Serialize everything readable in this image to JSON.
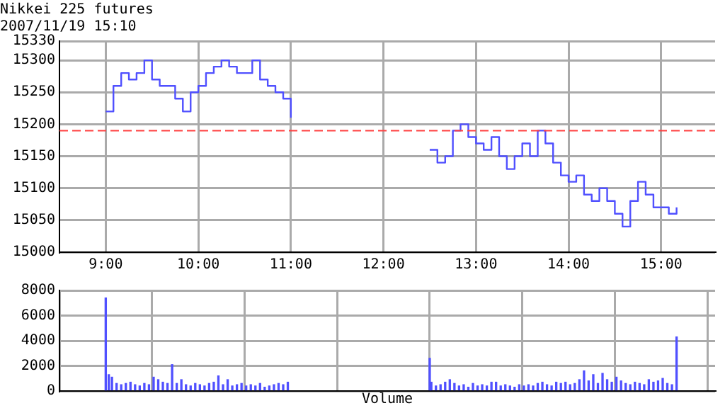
{
  "chart_data": [
    {
      "type": "step",
      "title": "Nikkei 225 futures",
      "subtitle": "2007/11/19 15:10",
      "x": [
        9,
        9.083,
        9.167,
        9.25,
        9.333,
        9.417,
        9.5,
        9.583,
        9.667,
        9.75,
        9.833,
        9.917,
        10,
        10.083,
        10.167,
        10.25,
        10.333,
        10.417,
        10.5,
        10.583,
        10.667,
        10.75,
        10.833,
        10.917,
        11,
        11.75,
        12.5,
        12.583,
        12.667,
        12.75,
        12.833,
        12.917,
        13,
        13.083,
        13.167,
        13.25,
        13.333,
        13.417,
        13.5,
        13.583,
        13.667,
        13.75,
        13.833,
        13.917,
        14,
        14.083,
        14.167,
        14.25,
        14.333,
        14.417,
        14.5,
        14.583,
        14.667,
        14.75,
        14.833,
        14.917,
        15,
        15.083,
        15.167
      ],
      "series": [
        {
          "color": "#5050ff",
          "values": [
            15220,
            15260,
            15280,
            15270,
            15280,
            15300,
            15270,
            15260,
            15260,
            15240,
            15220,
            15250,
            15260,
            15280,
            15290,
            15300,
            15290,
            15280,
            15280,
            15300,
            15270,
            15260,
            15250,
            15240,
            15210,
            null,
            15160,
            15140,
            15150,
            15190,
            15200,
            15180,
            15170,
            15160,
            15180,
            15150,
            15130,
            15150,
            15170,
            15150,
            15190,
            15170,
            15140,
            15120,
            15110,
            15120,
            15090,
            15080,
            15100,
            15080,
            15060,
            15040,
            15080,
            15110,
            15090,
            15070,
            15070,
            15060,
            15070
          ]
        }
      ],
      "xlim": [
        8.5,
        15.583
      ],
      "xticks": [
        {
          "value": 9,
          "label": "9:00"
        },
        {
          "value": 10,
          "label": "10:00"
        },
        {
          "value": 11,
          "label": "11:00"
        },
        {
          "value": 12,
          "label": "12:00"
        },
        {
          "value": 13,
          "label": "13:00"
        },
        {
          "value": 14,
          "label": "14:00"
        },
        {
          "value": 15,
          "label": "15:00"
        }
      ],
      "ylim": [
        15000,
        15330
      ],
      "yticks": [
        15000,
        15050,
        15100,
        15150,
        15200,
        15250,
        15300,
        15330
      ],
      "ref_lines": [
        {
          "axis": "y",
          "value": 15190,
          "color": "#ff4040",
          "line_style": "dashed"
        }
      ],
      "grid": true,
      "legend": false
    },
    {
      "type": "bar",
      "xlabel": "Volume",
      "x": [
        9,
        9.033,
        9.067,
        9.117,
        9.167,
        9.217,
        9.267,
        9.317,
        9.367,
        9.417,
        9.467,
        9.517,
        9.567,
        9.617,
        9.667,
        9.717,
        9.767,
        9.817,
        9.867,
        9.917,
        9.967,
        10.017,
        10.067,
        10.117,
        10.167,
        10.217,
        10.267,
        10.317,
        10.367,
        10.417,
        10.467,
        10.517,
        10.567,
        10.617,
        10.667,
        10.717,
        10.767,
        10.817,
        10.867,
        10.917,
        10.967,
        12.5,
        12.517,
        12.567,
        12.617,
        12.667,
        12.717,
        12.767,
        12.817,
        12.867,
        12.917,
        12.967,
        13.017,
        13.067,
        13.117,
        13.167,
        13.217,
        13.267,
        13.317,
        13.367,
        13.417,
        13.467,
        13.517,
        13.567,
        13.617,
        13.667,
        13.717,
        13.767,
        13.817,
        13.867,
        13.917,
        13.967,
        14.017,
        14.067,
        14.117,
        14.167,
        14.217,
        14.267,
        14.317,
        14.367,
        14.417,
        14.467,
        14.517,
        14.567,
        14.617,
        14.667,
        14.717,
        14.767,
        14.817,
        14.867,
        14.917,
        14.967,
        15.017,
        15.067,
        15.117,
        15.167
      ],
      "series": [
        {
          "color": "#5050ff",
          "values": [
            7400,
            1300,
            1100,
            600,
            500,
            600,
            700,
            500,
            400,
            600,
            500,
            1100,
            900,
            700,
            600,
            2100,
            600,
            900,
            500,
            400,
            600,
            500,
            400,
            600,
            700,
            1200,
            500,
            900,
            400,
            500,
            600,
            400,
            500,
            400,
            600,
            300,
            400,
            500,
            600,
            500,
            700,
            2600,
            700,
            400,
            500,
            700,
            900,
            600,
            400,
            500,
            300,
            600,
            400,
            500,
            400,
            700,
            700,
            400,
            500,
            400,
            300,
            500,
            400,
            500,
            400,
            600,
            700,
            500,
            400,
            700,
            600,
            700,
            500,
            600,
            900,
            1600,
            800,
            1300,
            600,
            1400,
            900,
            700,
            1100,
            800,
            600,
            500,
            700,
            600,
            500,
            900,
            700,
            800,
            1000,
            600,
            500,
            4300
          ]
        }
      ],
      "xlim": [
        8.5,
        15.583
      ],
      "xticks": [
        {
          "value": 9,
          "label": null
        },
        {
          "value": 10,
          "label": null
        },
        {
          "value": 11,
          "label": null
        },
        {
          "value": 12,
          "label": null
        },
        {
          "value": 13,
          "label": null
        },
        {
          "value": 14,
          "label": null
        },
        {
          "value": 15,
          "label": null
        }
      ],
      "ylim": [
        0,
        8000
      ],
      "yticks": [
        0,
        2000,
        4000,
        6000,
        8000
      ],
      "grid": true,
      "legend": false,
      "tick_labels": "y"
    }
  ]
}
